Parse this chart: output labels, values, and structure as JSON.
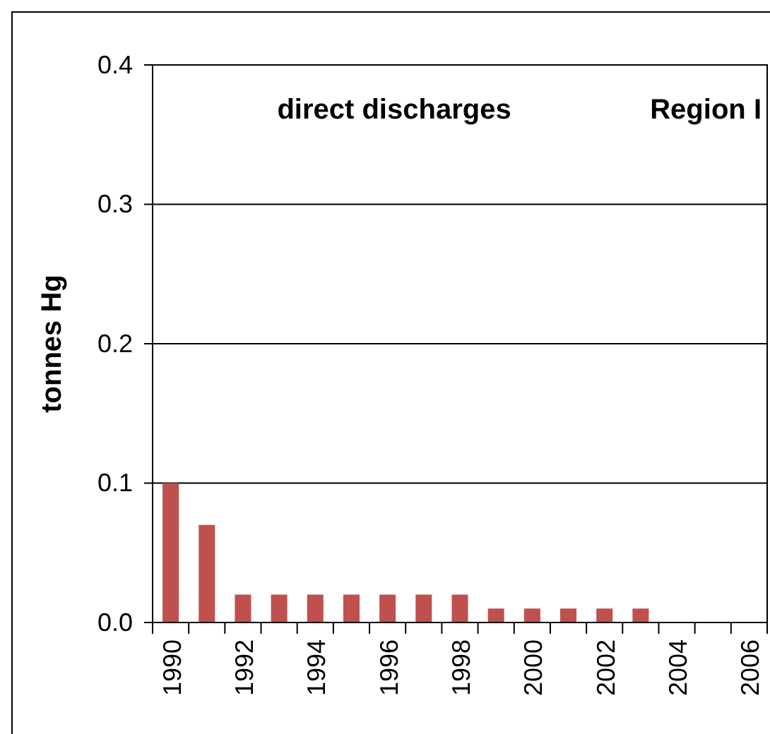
{
  "chart_data": {
    "type": "bar",
    "title": "direct discharges",
    "subtitle": "Region I",
    "ylabel": "tonnes Hg",
    "categories": [
      "1990",
      null,
      "1992",
      null,
      "1994",
      null,
      "1996",
      null,
      "1998",
      null,
      "2000",
      null,
      "2002",
      null,
      "2004",
      null,
      "2006"
    ],
    "values": [
      0.1,
      0.07,
      0.02,
      0.02,
      0.02,
      0.02,
      0.02,
      0.02,
      0.02,
      0.01,
      0.01,
      0.01,
      0.01,
      0.01,
      null,
      null,
      null
    ],
    "color": "#c0504d",
    "ylim": [
      0,
      0.4
    ],
    "yticks": [
      {
        "value": 0,
        "label": "0.0"
      },
      0.1,
      0.2,
      0.3,
      0.4
    ],
    "grid": "y"
  }
}
